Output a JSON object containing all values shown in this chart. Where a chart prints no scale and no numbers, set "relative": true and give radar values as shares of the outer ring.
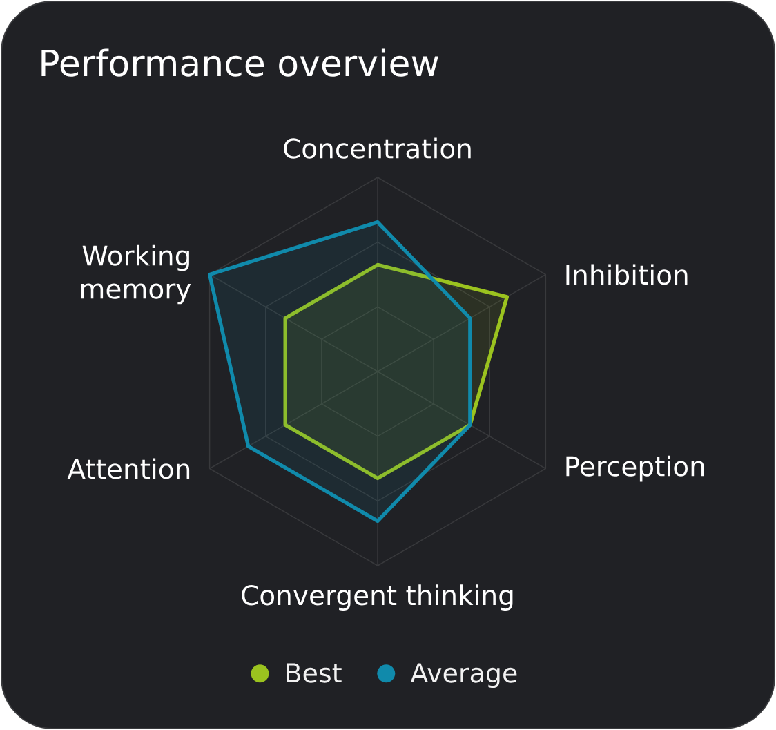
{
  "chart_data": {
    "type": "radar",
    "title": "Performance overview",
    "categories": [
      "Concentration",
      "Inhibition",
      "Perception",
      "Convergent thinking",
      "Attention",
      "Working memory"
    ],
    "relative": true,
    "series": [
      {
        "name": "Best",
        "color": "#9bc31f",
        "values": [
          0.55,
          0.77,
          0.55,
          0.55,
          0.55,
          0.55
        ]
      },
      {
        "name": "Average",
        "color": "#108aab",
        "values": [
          0.77,
          0.55,
          0.55,
          0.77,
          0.77,
          1
        ]
      }
    ],
    "grid": true,
    "legend": "bottom"
  }
}
